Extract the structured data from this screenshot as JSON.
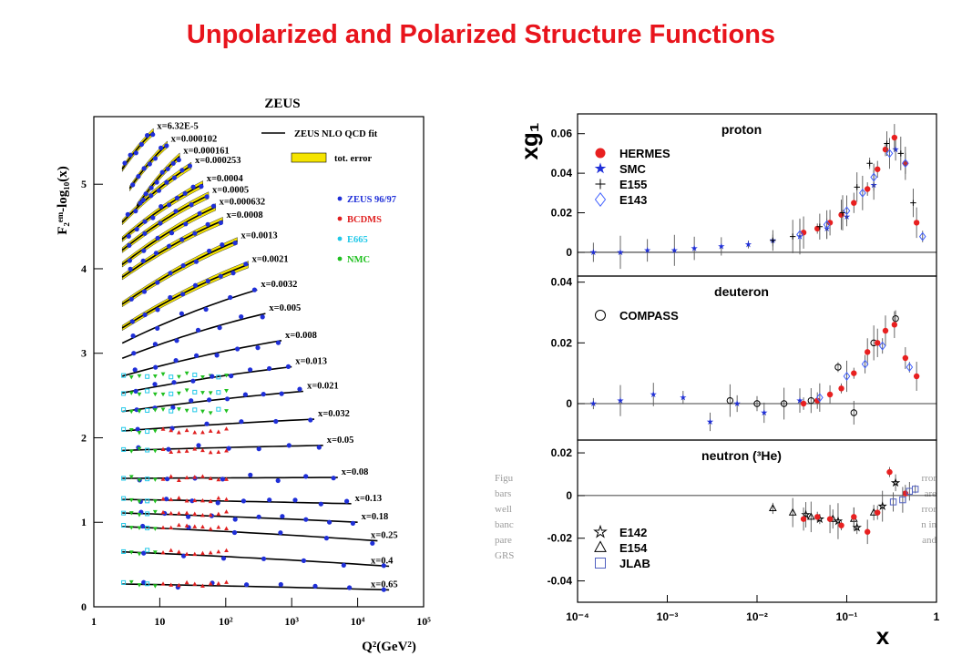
{
  "slide": {
    "title": "Unpolarized and Polarized Structure Functions"
  },
  "caption_fragments": {
    "left": [
      "Figu",
      "bars",
      "well",
      "banc",
      "pare",
      "GRS"
    ],
    "right": [
      "rror",
      "are",
      "rror",
      "n in",
      "and"
    ]
  },
  "colors": {
    "title": "#e8141c",
    "zeus": "#1f2fd8",
    "bcdms": "#e02020",
    "e665": "#20c8e8",
    "nmc": "#20c020",
    "band": "#f5e400",
    "hermes": "#e82020"
  },
  "chart_data": [
    {
      "type": "scatter",
      "title": "ZEUS",
      "xlabel": "Q²(GeV²)",
      "ylabel": "F₂ᵉᵐ-log₁₀(x)",
      "xscale": "log",
      "xlim": [
        1,
        100000
      ],
      "ylim": [
        0,
        5.8
      ],
      "x_ticks": [
        "1",
        "10",
        "10²",
        "10³",
        "10⁴",
        "10⁵"
      ],
      "y_ticks": [
        "0",
        "1",
        "2",
        "3",
        "4",
        "5"
      ],
      "legend": {
        "placement": "top-right",
        "fit": "ZEUS NLO QCD fit",
        "band": "tot. error",
        "entries": [
          {
            "name": "ZEUS 96/97",
            "color": "#1f2fd8"
          },
          {
            "name": "BCDMS",
            "color": "#e02020"
          },
          {
            "name": "E665",
            "color": "#20c8e8"
          },
          {
            "name": "NMC",
            "color": "#20c020"
          }
        ]
      },
      "series": [
        {
          "label": "x=6.32E-5",
          "q2": [
            2.7,
            8
          ],
          "y": [
            5.18,
            5.62
          ]
        },
        {
          "label": "x=0.000102",
          "q2": [
            3.5,
            13
          ],
          "y": [
            4.95,
            5.47
          ]
        },
        {
          "label": "x=0.000161",
          "q2": [
            4.5,
            20
          ],
          "y": [
            4.74,
            5.33
          ]
        },
        {
          "label": "x=0.000253",
          "q2": [
            2.7,
            30
          ],
          "y": [
            4.55,
            5.22
          ]
        },
        {
          "label": "x=0.0004",
          "q2": [
            2.7,
            45
          ],
          "y": [
            4.35,
            5.0
          ]
        },
        {
          "label": "x=0.0005",
          "q2": [
            2.7,
            55
          ],
          "y": [
            4.22,
            4.87
          ]
        },
        {
          "label": "x=0.000632",
          "q2": [
            2.7,
            70
          ],
          "y": [
            4.05,
            4.73
          ]
        },
        {
          "label": "x=0.0008",
          "q2": [
            2.7,
            90
          ],
          "y": [
            3.9,
            4.57
          ]
        },
        {
          "label": "x=0.0013",
          "q2": [
            2.7,
            150
          ],
          "y": [
            3.58,
            4.33
          ]
        },
        {
          "label": "x=0.0021",
          "q2": [
            2.7,
            220
          ],
          "y": [
            3.3,
            4.05
          ]
        },
        {
          "label": "x=0.0032",
          "q2": [
            2.7,
            300
          ],
          "y": [
            3.12,
            3.75
          ]
        },
        {
          "label": "x=0.005",
          "q2": [
            2.7,
            400
          ],
          "y": [
            2.94,
            3.47
          ]
        },
        {
          "label": "x=0.008",
          "q2": [
            2.7,
            700
          ],
          "y": [
            2.73,
            3.15
          ]
        },
        {
          "label": "x=0.013",
          "q2": [
            2.7,
            1000
          ],
          "y": [
            2.53,
            2.84
          ]
        },
        {
          "label": "x=0.021",
          "q2": [
            2.7,
            1500
          ],
          "y": [
            2.31,
            2.55
          ]
        },
        {
          "label": "x=0.032",
          "q2": [
            2.7,
            2200
          ],
          "y": [
            2.08,
            2.22
          ]
        },
        {
          "label": "x=0.05",
          "q2": [
            2.7,
            3000
          ],
          "y": [
            1.85,
            1.91
          ]
        },
        {
          "label": "x=0.08",
          "q2": [
            2.7,
            5000
          ],
          "y": [
            1.52,
            1.53
          ]
        },
        {
          "label": "x=0.13",
          "q2": [
            2.7,
            8000
          ],
          "y": [
            1.27,
            1.22
          ]
        },
        {
          "label": "x=0.18",
          "q2": [
            2.7,
            10000
          ],
          "y": [
            1.11,
            1.0
          ]
        },
        {
          "label": "x=0.25",
          "q2": [
            2.7,
            20000
          ],
          "y": [
            0.95,
            0.78
          ]
        },
        {
          "label": "x=0.4",
          "q2": [
            2.7,
            30000
          ],
          "y": [
            0.65,
            0.48
          ]
        },
        {
          "label": "x=0.65",
          "q2": [
            2.7,
            30000
          ],
          "y": [
            0.27,
            0.2
          ]
        }
      ]
    },
    {
      "type": "scatter",
      "xlabel": "x",
      "ylabel": "xg₁",
      "xscale": "log",
      "xlim": [
        0.0001,
        1
      ],
      "x_ticks": [
        "10⁻⁴",
        "10⁻³",
        "10⁻²",
        "10⁻¹",
        "1"
      ],
      "panels": [
        {
          "name": "proton",
          "ylim": [
            -0.012,
            0.07
          ],
          "y_ticks": [
            "0",
            "0.02",
            "0.04",
            "0.06"
          ],
          "legend": [
            "HERMES",
            "SMC",
            "E155",
            "E143"
          ],
          "points": [
            {
              "set": "SMC",
              "x": 0.00015,
              "y": 0.0
            },
            {
              "set": "SMC",
              "x": 0.0003,
              "y": 0.0
            },
            {
              "set": "SMC",
              "x": 0.0006,
              "y": 0.001
            },
            {
              "set": "SMC",
              "x": 0.0012,
              "y": 0.001
            },
            {
              "set": "SMC",
              "x": 0.002,
              "y": 0.002
            },
            {
              "set": "SMC",
              "x": 0.004,
              "y": 0.003
            },
            {
              "set": "SMC",
              "x": 0.008,
              "y": 0.004
            },
            {
              "set": "SMC",
              "x": 0.015,
              "y": 0.006
            },
            {
              "set": "SMC",
              "x": 0.03,
              "y": 0.008
            },
            {
              "set": "SMC",
              "x": 0.06,
              "y": 0.012
            },
            {
              "set": "SMC",
              "x": 0.1,
              "y": 0.018
            },
            {
              "set": "SMC",
              "x": 0.2,
              "y": 0.034
            },
            {
              "set": "SMC",
              "x": 0.35,
              "y": 0.052
            },
            {
              "set": "HERMES",
              "x": 0.033,
              "y": 0.01
            },
            {
              "set": "HERMES",
              "x": 0.047,
              "y": 0.012
            },
            {
              "set": "HERMES",
              "x": 0.065,
              "y": 0.015
            },
            {
              "set": "HERMES",
              "x": 0.087,
              "y": 0.019
            },
            {
              "set": "HERMES",
              "x": 0.12,
              "y": 0.025
            },
            {
              "set": "HERMES",
              "x": 0.17,
              "y": 0.032
            },
            {
              "set": "HERMES",
              "x": 0.22,
              "y": 0.042
            },
            {
              "set": "HERMES",
              "x": 0.27,
              "y": 0.052
            },
            {
              "set": "HERMES",
              "x": 0.34,
              "y": 0.058
            },
            {
              "set": "HERMES",
              "x": 0.45,
              "y": 0.045
            },
            {
              "set": "HERMES",
              "x": 0.6,
              "y": 0.015
            },
            {
              "set": "E155",
              "x": 0.015,
              "y": 0.006
            },
            {
              "set": "E155",
              "x": 0.025,
              "y": 0.008
            },
            {
              "set": "E155",
              "x": 0.05,
              "y": 0.013
            },
            {
              "set": "E155",
              "x": 0.09,
              "y": 0.02
            },
            {
              "set": "E155",
              "x": 0.13,
              "y": 0.033
            },
            {
              "set": "E155",
              "x": 0.18,
              "y": 0.045
            },
            {
              "set": "E155",
              "x": 0.28,
              "y": 0.055
            },
            {
              "set": "E155",
              "x": 0.4,
              "y": 0.05
            },
            {
              "set": "E155",
              "x": 0.55,
              "y": 0.025
            },
            {
              "set": "E143",
              "x": 0.03,
              "y": 0.009
            },
            {
              "set": "E143",
              "x": 0.06,
              "y": 0.014
            },
            {
              "set": "E143",
              "x": 0.1,
              "y": 0.021
            },
            {
              "set": "E143",
              "x": 0.15,
              "y": 0.03
            },
            {
              "set": "E143",
              "x": 0.2,
              "y": 0.038
            },
            {
              "set": "E143",
              "x": 0.3,
              "y": 0.05
            },
            {
              "set": "E143",
              "x": 0.45,
              "y": 0.045
            },
            {
              "set": "E143",
              "x": 0.7,
              "y": 0.008
            }
          ]
        },
        {
          "name": "deuteron",
          "ylim": [
            -0.012,
            0.042
          ],
          "y_ticks": [
            "0",
            "0.02",
            "0.04"
          ],
          "legend": [
            "COMPASS"
          ],
          "points": [
            {
              "set": "SMC",
              "x": 0.00015,
              "y": 0.0
            },
            {
              "set": "SMC",
              "x": 0.0003,
              "y": 0.001
            },
            {
              "set": "SMC",
              "x": 0.0007,
              "y": 0.003
            },
            {
              "set": "SMC",
              "x": 0.0015,
              "y": 0.002
            },
            {
              "set": "SMC",
              "x": 0.003,
              "y": -0.006
            },
            {
              "set": "SMC",
              "x": 0.006,
              "y": 0.0
            },
            {
              "set": "SMC",
              "x": 0.012,
              "y": -0.003
            },
            {
              "set": "SMC",
              "x": 0.03,
              "y": 0.001
            },
            {
              "set": "COMPASS",
              "x": 0.005,
              "y": 0.001
            },
            {
              "set": "COMPASS",
              "x": 0.01,
              "y": 0.0
            },
            {
              "set": "COMPASS",
              "x": 0.02,
              "y": 0.0
            },
            {
              "set": "COMPASS",
              "x": 0.04,
              "y": 0.001
            },
            {
              "set": "COMPASS",
              "x": 0.08,
              "y": 0.012
            },
            {
              "set": "COMPASS",
              "x": 0.12,
              "y": -0.003
            },
            {
              "set": "COMPASS",
              "x": 0.2,
              "y": 0.02
            },
            {
              "set": "COMPASS",
              "x": 0.35,
              "y": 0.028
            },
            {
              "set": "HERMES",
              "x": 0.033,
              "y": 0.0
            },
            {
              "set": "HERMES",
              "x": 0.047,
              "y": 0.001
            },
            {
              "set": "HERMES",
              "x": 0.065,
              "y": 0.003
            },
            {
              "set": "HERMES",
              "x": 0.087,
              "y": 0.005
            },
            {
              "set": "HERMES",
              "x": 0.12,
              "y": 0.01
            },
            {
              "set": "HERMES",
              "x": 0.17,
              "y": 0.017
            },
            {
              "set": "HERMES",
              "x": 0.22,
              "y": 0.02
            },
            {
              "set": "HERMES",
              "x": 0.27,
              "y": 0.024
            },
            {
              "set": "HERMES",
              "x": 0.34,
              "y": 0.026
            },
            {
              "set": "HERMES",
              "x": 0.45,
              "y": 0.015
            },
            {
              "set": "HERMES",
              "x": 0.6,
              "y": 0.009
            },
            {
              "set": "E143",
              "x": 0.05,
              "y": 0.002
            },
            {
              "set": "E143",
              "x": 0.1,
              "y": 0.009
            },
            {
              "set": "E143",
              "x": 0.16,
              "y": 0.013
            },
            {
              "set": "E143",
              "x": 0.25,
              "y": 0.019
            },
            {
              "set": "E143",
              "x": 0.5,
              "y": 0.012
            }
          ]
        },
        {
          "name": "neutron (³He)",
          "ylim": [
            -0.05,
            0.026
          ],
          "y_ticks": [
            "0.02",
            "0",
            "-0.02",
            "-0.04"
          ],
          "legend": [
            "E142",
            "E154",
            "JLAB"
          ],
          "points": [
            {
              "set": "E154",
              "x": 0.015,
              "y": -0.006
            },
            {
              "set": "E154",
              "x": 0.025,
              "y": -0.008
            },
            {
              "set": "E154",
              "x": 0.04,
              "y": -0.01
            },
            {
              "set": "E154",
              "x": 0.07,
              "y": -0.011
            },
            {
              "set": "E154",
              "x": 0.12,
              "y": -0.011
            },
            {
              "set": "E154",
              "x": 0.2,
              "y": -0.008
            },
            {
              "set": "E142",
              "x": 0.035,
              "y": -0.009
            },
            {
              "set": "E142",
              "x": 0.05,
              "y": -0.011
            },
            {
              "set": "E142",
              "x": 0.08,
              "y": -0.012
            },
            {
              "set": "E142",
              "x": 0.13,
              "y": -0.015
            },
            {
              "set": "E142",
              "x": 0.25,
              "y": -0.005
            },
            {
              "set": "E142",
              "x": 0.35,
              "y": 0.006
            },
            {
              "set": "HERMES",
              "x": 0.033,
              "y": -0.011
            },
            {
              "set": "HERMES",
              "x": 0.047,
              "y": -0.01
            },
            {
              "set": "HERMES",
              "x": 0.065,
              "y": -0.011
            },
            {
              "set": "HERMES",
              "x": 0.087,
              "y": -0.014
            },
            {
              "set": "HERMES",
              "x": 0.12,
              "y": -0.01
            },
            {
              "set": "HERMES",
              "x": 0.17,
              "y": -0.017
            },
            {
              "set": "HERMES",
              "x": 0.22,
              "y": -0.008
            },
            {
              "set": "HERMES",
              "x": 0.3,
              "y": 0.011
            },
            {
              "set": "HERMES",
              "x": 0.45,
              "y": 0.001
            },
            {
              "set": "JLAB",
              "x": 0.33,
              "y": -0.003
            },
            {
              "set": "JLAB",
              "x": 0.42,
              "y": -0.002
            },
            {
              "set": "JLAB",
              "x": 0.5,
              "y": 0.002
            },
            {
              "set": "JLAB",
              "x": 0.58,
              "y": 0.003
            }
          ]
        }
      ]
    }
  ]
}
